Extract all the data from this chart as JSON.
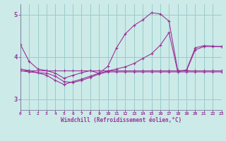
{
  "bg_color": "#cceae8",
  "line_color": "#993399",
  "grid_color": "#99cccc",
  "xlabel": "Windchill (Refroidissement éolien,°C)",
  "ylim": [
    2.75,
    5.25
  ],
  "xlim": [
    0,
    23
  ],
  "yticks": [
    3,
    4,
    5
  ],
  "xticks": [
    0,
    1,
    2,
    3,
    4,
    5,
    6,
    7,
    8,
    9,
    10,
    11,
    12,
    13,
    14,
    15,
    16,
    17,
    18,
    19,
    20,
    21,
    22,
    23
  ],
  "line1_x": [
    0,
    1,
    2,
    3,
    4,
    5,
    6,
    7,
    8,
    9,
    10,
    11,
    12,
    13,
    14,
    15,
    16,
    17,
    18,
    19,
    20,
    21,
    22,
    23
  ],
  "line1_y": [
    4.3,
    3.9,
    3.72,
    3.68,
    3.62,
    3.5,
    3.57,
    3.63,
    3.68,
    3.62,
    3.78,
    4.22,
    4.55,
    4.75,
    4.88,
    5.05,
    5.02,
    4.85,
    3.68,
    3.68,
    4.17,
    4.25,
    4.25,
    4.25
  ],
  "line2_x": [
    0,
    1,
    2,
    3,
    4,
    5,
    6,
    7,
    8,
    9,
    10,
    11,
    12,
    13,
    14,
    15,
    16,
    17,
    18,
    19,
    20,
    21,
    22,
    23
  ],
  "line2_y": [
    3.68,
    3.68,
    3.68,
    3.68,
    3.68,
    3.68,
    3.68,
    3.68,
    3.68,
    3.68,
    3.68,
    3.68,
    3.68,
    3.68,
    3.68,
    3.68,
    3.68,
    3.68,
    3.68,
    3.68,
    3.68,
    3.68,
    3.68,
    3.68
  ],
  "line3_x": [
    0,
    1,
    2,
    3,
    4,
    5,
    6,
    7,
    8,
    9,
    10,
    11,
    12,
    13,
    14,
    15,
    16,
    17,
    18,
    19,
    20,
    21,
    22,
    23
  ],
  "line3_y": [
    3.72,
    3.68,
    3.63,
    3.57,
    3.45,
    3.35,
    3.42,
    3.48,
    3.55,
    3.62,
    3.67,
    3.72,
    3.77,
    3.85,
    3.97,
    4.08,
    4.28,
    4.58,
    3.65,
    3.7,
    4.22,
    4.27,
    4.26,
    4.25
  ],
  "line4_x": [
    0,
    1,
    2,
    3,
    4,
    5,
    6,
    7,
    8,
    9,
    10,
    11,
    12,
    13,
    14,
    15,
    16,
    17,
    18,
    19,
    20,
    21,
    22,
    23
  ],
  "line4_y": [
    3.68,
    3.65,
    3.63,
    3.62,
    3.55,
    3.42,
    3.4,
    3.45,
    3.52,
    3.6,
    3.65,
    3.65,
    3.65,
    3.65,
    3.65,
    3.65,
    3.65,
    3.65,
    3.65,
    3.65,
    3.65,
    3.65,
    3.65,
    3.65
  ]
}
